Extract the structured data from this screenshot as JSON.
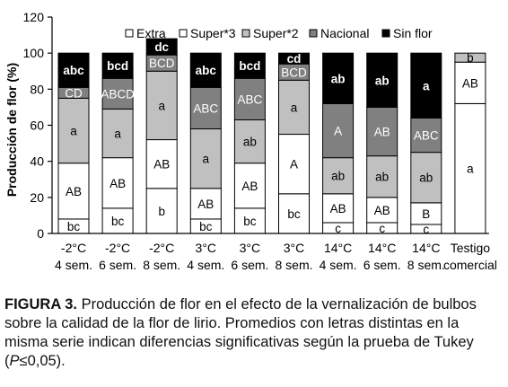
{
  "chart_data": {
    "type": "bar",
    "stacked": true,
    "ylabel": "Producción de flor (%)",
    "ylim": [
      0,
      120
    ],
    "yticks": [
      0,
      20,
      40,
      60,
      80,
      100,
      120
    ],
    "grid": false,
    "legend_position": "top",
    "categories": [
      [
        "-2°C",
        "4 sem."
      ],
      [
        "-2°C",
        "6 sem."
      ],
      [
        "-2°C",
        "8 sem."
      ],
      [
        "3°C",
        "4 sem."
      ],
      [
        "3°C",
        "6 sem."
      ],
      [
        "3°C",
        "8 sem."
      ],
      [
        "14°C",
        "4 sem."
      ],
      [
        "14°C",
        "6 sem."
      ],
      [
        "14°C",
        "8 sem."
      ],
      [
        "Testigo",
        "comercial"
      ]
    ],
    "series": [
      {
        "name": "Extra",
        "color": "#ffffff",
        "values": [
          8,
          14,
          25,
          8,
          14,
          22,
          6,
          6,
          5,
          72
        ],
        "labels": [
          "bc",
          "bc",
          "b",
          "bc",
          "bc",
          "bc",
          "c",
          "c",
          "c",
          "a"
        ],
        "label_color": "#000000"
      },
      {
        "name": "Super*3",
        "color": "#ffffff",
        "values": [
          31,
          28,
          27,
          17,
          25,
          33,
          16,
          14,
          12,
          23
        ],
        "labels": [
          "AB",
          "AB",
          "AB",
          "AB",
          "AB",
          "A",
          "AB",
          "AB",
          "B",
          "AB"
        ],
        "label_color": "#000000"
      },
      {
        "name": "Super*2",
        "color": "#c0c0c0",
        "values": [
          36,
          27,
          38,
          33,
          24,
          30,
          20,
          23,
          28,
          5
        ],
        "labels": [
          "a",
          "a",
          "a",
          "a",
          "ab",
          "a",
          "ab",
          "ab",
          "ab",
          "b"
        ],
        "label_color": "#000000"
      },
      {
        "name": "Nacional",
        "color": "#808080",
        "values": [
          6,
          17,
          9,
          23,
          23,
          9,
          30,
          27,
          19,
          0
        ],
        "labels": [
          "CD",
          "ABCD",
          "BCD",
          "ABC",
          "ABC",
          "BCD",
          "A",
          "AB",
          "ABC",
          ""
        ],
        "label_color": "#ffffff"
      },
      {
        "name": "Sin flor",
        "color": "#000000",
        "values": [
          19,
          14,
          9,
          19,
          14,
          6,
          28,
          30,
          36,
          0
        ],
        "labels": [
          "abc",
          "bcd",
          "dc",
          "abc",
          "bcd",
          "cd",
          "ab",
          "ab",
          "a",
          ""
        ],
        "label_color": "#ffffff"
      }
    ]
  },
  "caption": {
    "label": "FIGURA 3.",
    "text_before_p": " Producción de flor en el efecto de la vernalización de bulbos sobre la calidad de la flor de lirio. Promedios con letras distintas en la misma serie indican diferencias significativas según la prueba de Tukey (",
    "p_symbol": "P",
    "text_after_p": "≤0,05)."
  }
}
